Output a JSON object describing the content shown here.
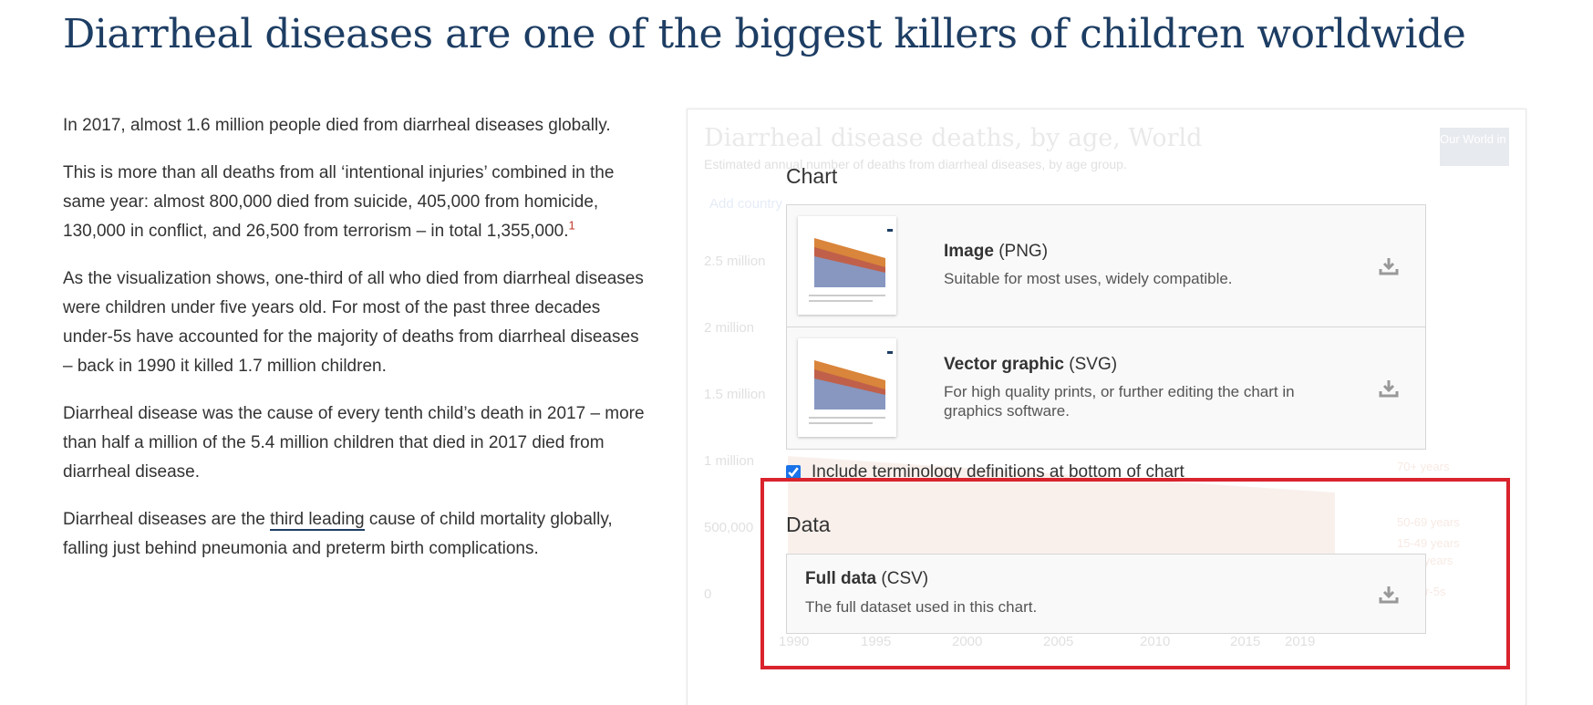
{
  "title": "Diarrheal diseases are one of the biggest killers of children worldwide",
  "paragraphs": [
    {
      "text": "In 2017, almost 1.6 million people died from diarrheal diseases globally."
    },
    {
      "text": "This is more than all deaths from all ‘intentional injuries’ combined in the same year: almost 800,000 died from suicide, 405,000 from homicide, 130,000 in conflict, and 26,500 from terrorism – in total 1,355,000.",
      "footnote": "1"
    },
    {
      "text": "As the visualization shows, one-third of all who died from diarrheal diseases were children under five years old. For most of the past three decades under-5s have accounted for the majority of deaths from diarrheal diseases – back in 1990 it killed 1.7 million children."
    },
    {
      "text": "Diarrheal disease was the cause of every tenth child’s death in 2017 – more than half a million of the 5.4 million children that died in 2017 died from diarrheal disease."
    },
    {
      "text": "Diarrheal diseases are the ",
      "link": "third leading",
      "text_after": " cause of child mortality globally, falling just behind pneumonia and preterm birth complications."
    }
  ],
  "background_chart": {
    "title": "Diarrheal disease deaths, by age, World",
    "subtitle": "Estimated annual number of deaths from diarrheal diseases, by age group.",
    "add_country": "Add country",
    "logo": "Our World in Data",
    "yticks": [
      "2.5 million",
      "2 million",
      "1.5 million",
      "1 million",
      "500,000",
      "0"
    ],
    "xticks": [
      "1990",
      "1995",
      "2000",
      "2005",
      "2010",
      "2015",
      "2019"
    ],
    "legend": [
      "70+ years",
      "50-69 years",
      "15-49 years",
      "5-14 years",
      "Under-5s"
    ]
  },
  "download_modal": {
    "chart_heading": "Chart",
    "options": [
      {
        "name": "Image",
        "format": "(PNG)",
        "description": "Suitable for most uses, widely compatible."
      },
      {
        "name": "Vector graphic",
        "format": "(SVG)",
        "description": "For high quality prints, or further editing the chart in graphics software."
      }
    ],
    "checkbox_label": "Include terminology definitions at bottom of chart",
    "data_heading": "Data",
    "data_option": {
      "name": "Full data",
      "format": "(CSV)",
      "description": "The full dataset used in this chart."
    }
  }
}
